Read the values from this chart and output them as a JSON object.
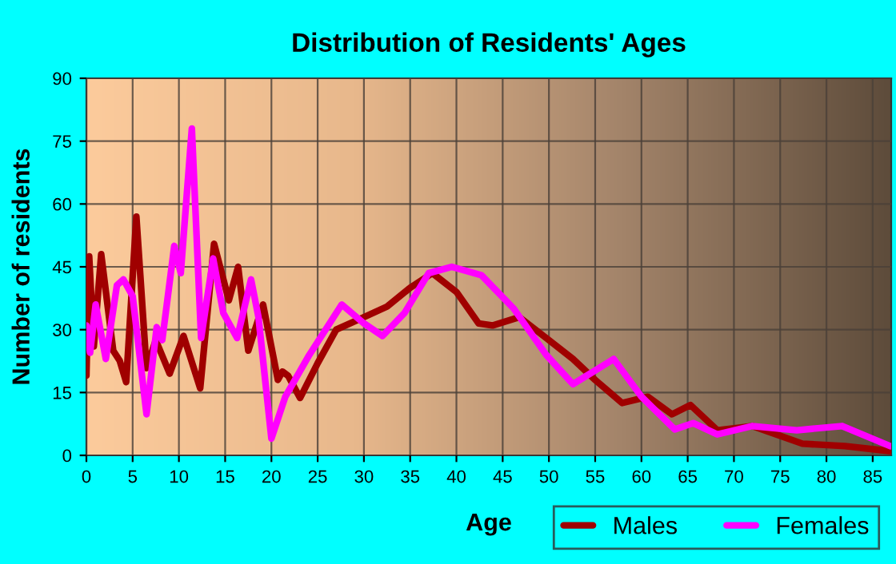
{
  "chart_data": {
    "type": "line",
    "title": "Distribution of Residents' Ages",
    "xlabel": "Age",
    "ylabel": "Number of residents",
    "xlim": [
      0,
      87
    ],
    "xticks": [
      0,
      5,
      10,
      15,
      20,
      25,
      30,
      35,
      40,
      45,
      50,
      55,
      60,
      65,
      70,
      75,
      80,
      85
    ],
    "ylim": [
      0,
      90
    ],
    "yticks": [
      0,
      15,
      30,
      45,
      60,
      75,
      90
    ],
    "grid": true,
    "legend": "bottom right",
    "marker": "none",
    "line_style": "solid",
    "series": [
      {
        "name": "Males",
        "color": "#a00000",
        "x": [
          0,
          0.3,
          0.8,
          1.6,
          2.9,
          3.6,
          4.3,
          5.4,
          6.5,
          7.5,
          9,
          10.5,
          12.3,
          13.8,
          15.4,
          16.4,
          17.5,
          19.1,
          20.7,
          21.2,
          21.8,
          23.1,
          25,
          27,
          30,
          32.5,
          35,
          37.4,
          40,
          42.4,
          43.9,
          46.8,
          50,
          52.6,
          55,
          57.9,
          60.7,
          63.3,
          65.3,
          68.2,
          72,
          77.4,
          82,
          86.9
        ],
        "values": [
          19,
          47.5,
          26,
          48,
          25,
          22.6,
          17.5,
          57,
          20.8,
          27.5,
          19.5,
          28.5,
          16,
          50.5,
          37,
          45,
          25,
          36,
          18,
          20,
          19,
          13.7,
          22,
          30,
          33,
          35.5,
          40,
          43.5,
          39,
          31.5,
          31,
          33,
          27.5,
          23,
          18,
          12.5,
          14,
          9.8,
          12,
          6,
          7,
          2.8,
          2.2,
          1
        ]
      },
      {
        "name": "Females",
        "color": "#ff00ff",
        "x": [
          0,
          0.4,
          1,
          2.1,
          3.3,
          4,
          5,
          6.5,
          7.6,
          8.2,
          9.5,
          10.2,
          11.4,
          12.4,
          13.7,
          14.8,
          16.3,
          17.8,
          18.6,
          20,
          21.5,
          24.1,
          27.6,
          30,
          32,
          34.4,
          37,
          39.5,
          42.7,
          46.2,
          49.7,
          52.6,
          57,
          60,
          63.6,
          65.6,
          68.2,
          72,
          76.8,
          81.7,
          86.9
        ],
        "values": [
          31,
          24.5,
          36,
          23,
          40.6,
          42,
          38,
          9.8,
          30.6,
          27.5,
          50,
          43.5,
          78,
          28,
          47,
          34,
          28,
          42,
          33,
          4,
          14,
          24,
          36,
          31.5,
          28.5,
          34,
          43.5,
          45,
          43,
          35,
          24,
          17,
          23,
          14,
          6.2,
          7.7,
          5,
          7,
          6,
          7,
          2.2
        ]
      }
    ]
  }
}
